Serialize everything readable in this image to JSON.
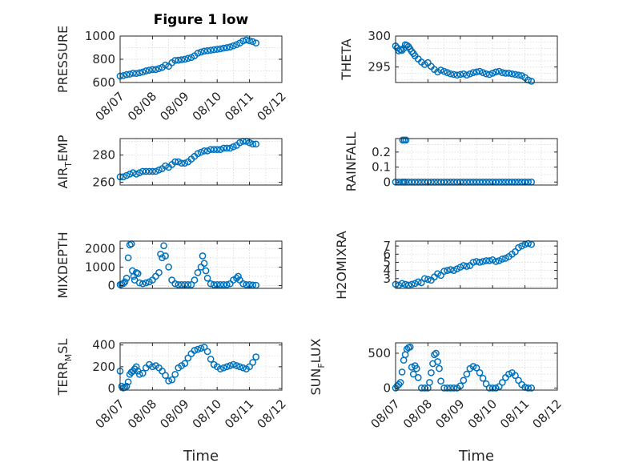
{
  "figure": {
    "title": "Figure 1 low",
    "colors": {
      "marker": "#0072BD",
      "axis": "#262626",
      "grid": "#d9d9d9"
    }
  },
  "chart_data": [
    {
      "type": "scatter",
      "ylabel": "PRESSURE",
      "ylim": [
        600,
        1000
      ],
      "yticks": [
        {
          "v": 600,
          "label": "600"
        },
        {
          "v": 800,
          "label": "800"
        },
        {
          "v": 1000,
          "label": "1000"
        }
      ],
      "ygrid": [
        600,
        700,
        800,
        900,
        1000
      ],
      "xlim": [
        0,
        5
      ],
      "xticks": [
        {
          "v": 0,
          "label": "08/07"
        },
        {
          "v": 1,
          "label": "08/08"
        },
        {
          "v": 2,
          "label": "08/09"
        },
        {
          "v": 3,
          "label": "08/10"
        },
        {
          "v": 4,
          "label": "08/11"
        },
        {
          "v": 5,
          "label": "08/12"
        }
      ],
      "xgrid": [
        0,
        0.5,
        1,
        1.5,
        2,
        2.5,
        3,
        3.5,
        4,
        4.5,
        5
      ],
      "x": [
        0,
        0.1,
        0.2,
        0.3,
        0.4,
        0.5,
        0.6,
        0.7,
        0.8,
        0.9,
        1.0,
        1.1,
        1.2,
        1.3,
        1.4,
        1.5,
        1.6,
        1.7,
        1.8,
        1.9,
        2.0,
        2.1,
        2.2,
        2.3,
        2.4,
        2.5,
        2.6,
        2.7,
        2.8,
        2.9,
        3.0,
        3.1,
        3.2,
        3.3,
        3.4,
        3.5,
        3.6,
        3.7,
        3.8,
        3.9,
        4.0,
        4.1,
        4.2
      ],
      "y": [
        655,
        660,
        668,
        672,
        680,
        678,
        684,
        690,
        700,
        706,
        712,
        712,
        720,
        730,
        750,
        740,
        770,
        790,
        792,
        796,
        800,
        808,
        815,
        830,
        852,
        862,
        870,
        874,
        878,
        882,
        886,
        890,
        896,
        900,
        906,
        916,
        926,
        940,
        958,
        966,
        960,
        952,
        940
      ]
    },
    {
      "type": "scatter",
      "ylabel": "THETA",
      "ylim": [
        292.5,
        300
      ],
      "yticks": [
        {
          "v": 295,
          "label": "295"
        },
        {
          "v": 300,
          "label": "300"
        }
      ],
      "ygrid": [
        293,
        294,
        295,
        296,
        297,
        298,
        299,
        300
      ],
      "xlim": [
        0,
        5
      ],
      "xticks": [
        {
          "v": 0,
          "label": ""
        },
        {
          "v": 1,
          "label": ""
        },
        {
          "v": 2,
          "label": ""
        },
        {
          "v": 3,
          "label": ""
        },
        {
          "v": 4,
          "label": ""
        },
        {
          "v": 5,
          "label": ""
        }
      ],
      "xgrid": [
        0,
        0.5,
        1,
        1.5,
        2,
        2.5,
        3,
        3.5,
        4,
        4.5,
        5
      ],
      "x": [
        0,
        0.05,
        0.1,
        0.15,
        0.2,
        0.25,
        0.3,
        0.35,
        0.4,
        0.45,
        0.5,
        0.55,
        0.6,
        0.7,
        0.8,
        0.9,
        1.0,
        1.1,
        1.2,
        1.3,
        1.4,
        1.5,
        1.6,
        1.7,
        1.8,
        1.9,
        2.0,
        2.1,
        2.2,
        2.3,
        2.4,
        2.5,
        2.6,
        2.7,
        2.8,
        2.9,
        3.0,
        3.1,
        3.2,
        3.3,
        3.4,
        3.5,
        3.6,
        3.7,
        3.8,
        3.9,
        4.0,
        4.1,
        4.2
      ],
      "y": [
        298.4,
        298.1,
        297.6,
        297.8,
        297.7,
        298.0,
        298.6,
        298.5,
        298.3,
        297.9,
        297.5,
        297.2,
        296.8,
        296.3,
        295.8,
        295.4,
        295.7,
        295.1,
        294.6,
        294.2,
        294.5,
        294.3,
        294.1,
        293.9,
        293.8,
        293.7,
        293.8,
        293.9,
        293.7,
        293.9,
        294.1,
        294.2,
        294.3,
        294.1,
        293.9,
        293.8,
        294.0,
        294.2,
        294.3,
        294.1,
        294.0,
        294.0,
        293.9,
        293.8,
        293.7,
        293.6,
        293.3,
        292.9,
        292.7
      ]
    },
    {
      "type": "scatter",
      "ylabel": "AIR_TEMP",
      "ylim": [
        258,
        292
      ],
      "yticks": [
        {
          "v": 260,
          "label": "260"
        },
        {
          "v": 280,
          "label": "280"
        }
      ],
      "ygrid": [
        260,
        270,
        280,
        290
      ],
      "xlim": [
        0,
        5
      ],
      "xticks": [
        {
          "v": 0,
          "label": ""
        },
        {
          "v": 1,
          "label": ""
        },
        {
          "v": 2,
          "label": ""
        },
        {
          "v": 3,
          "label": ""
        },
        {
          "v": 4,
          "label": ""
        },
        {
          "v": 5,
          "label": ""
        }
      ],
      "xgrid": [
        0,
        0.5,
        1,
        1.5,
        2,
        2.5,
        3,
        3.5,
        4,
        4.5,
        5
      ],
      "x": [
        0,
        0.1,
        0.2,
        0.3,
        0.4,
        0.5,
        0.6,
        0.7,
        0.8,
        0.9,
        1.0,
        1.1,
        1.2,
        1.3,
        1.4,
        1.5,
        1.6,
        1.7,
        1.8,
        1.9,
        2.0,
        2.1,
        2.2,
        2.3,
        2.4,
        2.5,
        2.6,
        2.7,
        2.8,
        2.9,
        3.0,
        3.1,
        3.2,
        3.3,
        3.4,
        3.5,
        3.6,
        3.7,
        3.8,
        3.9,
        4.0,
        4.1,
        4.2
      ],
      "y": [
        264,
        264,
        265,
        266,
        267,
        266,
        267,
        268,
        268,
        268,
        268,
        268,
        269,
        270,
        272,
        271,
        273,
        275,
        275,
        274,
        274,
        275,
        277,
        279,
        281,
        282,
        283,
        283,
        284,
        284,
        284,
        284,
        285,
        285,
        285,
        286,
        287,
        289,
        290,
        290,
        289,
        288,
        288
      ]
    },
    {
      "type": "scatter",
      "ylabel": "RAINFALL",
      "ylim": [
        -0.02,
        0.29
      ],
      "yticks": [
        {
          "v": 0,
          "label": "0"
        },
        {
          "v": 0.1,
          "label": "0.1"
        },
        {
          "v": 0.2,
          "label": "0.2"
        }
      ],
      "ygrid": [
        0,
        0.05,
        0.1,
        0.15,
        0.2,
        0.25
      ],
      "xlim": [
        0,
        5
      ],
      "xticks": [
        {
          "v": 0,
          "label": ""
        },
        {
          "v": 1,
          "label": ""
        },
        {
          "v": 2,
          "label": ""
        },
        {
          "v": 3,
          "label": ""
        },
        {
          "v": 4,
          "label": ""
        },
        {
          "v": 5,
          "label": ""
        }
      ],
      "xgrid": [
        0,
        0.5,
        1,
        1.5,
        2,
        2.5,
        3,
        3.5,
        4,
        4.5,
        5
      ],
      "x": [
        0,
        0.1,
        0.2,
        0.25,
        0.3,
        0.4,
        0.5,
        0.6,
        0.7,
        0.8,
        0.9,
        1.0,
        1.1,
        1.2,
        1.3,
        1.4,
        1.5,
        1.6,
        1.7,
        1.8,
        1.9,
        2.0,
        2.1,
        2.2,
        2.3,
        2.4,
        2.5,
        2.6,
        2.7,
        2.8,
        2.9,
        3.0,
        3.1,
        3.2,
        3.3,
        3.4,
        3.5,
        3.6,
        3.7,
        3.8,
        3.9,
        4.0,
        4.1,
        4.2,
        0.22,
        0.27,
        0.32
      ],
      "y": [
        0,
        0,
        0,
        0,
        0,
        0,
        0,
        0,
        0,
        0,
        0,
        0,
        0,
        0,
        0,
        0,
        0,
        0,
        0,
        0,
        0,
        0,
        0,
        0,
        0,
        0,
        0,
        0,
        0,
        0,
        0,
        0,
        0,
        0,
        0,
        0,
        0,
        0,
        0,
        0,
        0,
        0,
        0,
        0,
        0.28,
        0.28,
        0.28
      ]
    },
    {
      "type": "scatter",
      "ylabel": "MIXDEPTH",
      "ylim": [
        -150,
        2400
      ],
      "yticks": [
        {
          "v": 0,
          "label": "0"
        },
        {
          "v": 1000,
          "label": "1000"
        },
        {
          "v": 2000,
          "label": "2000"
        }
      ],
      "ygrid": [
        0,
        500,
        1000,
        1500,
        2000
      ],
      "xlim": [
        0,
        5
      ],
      "xticks": [
        {
          "v": 0,
          "label": ""
        },
        {
          "v": 1,
          "label": ""
        },
        {
          "v": 2,
          "label": ""
        },
        {
          "v": 3,
          "label": ""
        },
        {
          "v": 4,
          "label": ""
        },
        {
          "v": 5,
          "label": ""
        }
      ],
      "xgrid": [
        0,
        0.5,
        1,
        1.5,
        2,
        2.5,
        3,
        3.5,
        4,
        4.5,
        5
      ],
      "x": [
        0,
        0.05,
        0.1,
        0.15,
        0.2,
        0.25,
        0.3,
        0.35,
        0.38,
        0.42,
        0.45,
        0.5,
        0.55,
        0.6,
        0.7,
        0.8,
        0.9,
        1.0,
        1.1,
        1.2,
        1.25,
        1.3,
        1.35,
        1.4,
        1.5,
        1.6,
        1.7,
        1.8,
        1.9,
        2.0,
        2.1,
        2.2,
        2.3,
        2.4,
        2.5,
        2.55,
        2.6,
        2.65,
        2.7,
        2.8,
        2.9,
        3.0,
        3.1,
        3.2,
        3.3,
        3.4,
        3.5,
        3.6,
        3.65,
        3.7,
        3.8,
        3.9,
        4.0,
        4.1,
        4.2
      ],
      "y": [
        50,
        80,
        120,
        200,
        400,
        1500,
        2200,
        2250,
        800,
        500,
        300,
        700,
        650,
        150,
        100,
        150,
        200,
        300,
        500,
        700,
        1700,
        1500,
        2150,
        1600,
        1000,
        300,
        100,
        50,
        50,
        50,
        50,
        50,
        300,
        700,
        1000,
        1600,
        1200,
        800,
        400,
        100,
        50,
        50,
        50,
        50,
        50,
        100,
        300,
        400,
        500,
        300,
        100,
        50,
        50,
        30,
        20
      ]
    },
    {
      "type": "scatter",
      "ylabel": "H2OMIXRA",
      "ylim": [
        1.8,
        7.6
      ],
      "yticks": [
        {
          "v": 3,
          "label": "3"
        },
        {
          "v": 4,
          "label": "4"
        },
        {
          "v": 5,
          "label": "5"
        },
        {
          "v": 6,
          "label": "6"
        },
        {
          "v": 7,
          "label": "7"
        }
      ],
      "ygrid": [
        2,
        3,
        4,
        5,
        6,
        7
      ],
      "xlim": [
        0,
        5
      ],
      "xticks": [
        {
          "v": 0,
          "label": ""
        },
        {
          "v": 1,
          "label": ""
        },
        {
          "v": 2,
          "label": ""
        },
        {
          "v": 3,
          "label": ""
        },
        {
          "v": 4,
          "label": ""
        },
        {
          "v": 5,
          "label": ""
        }
      ],
      "xgrid": [
        0,
        0.5,
        1,
        1.5,
        2,
        2.5,
        3,
        3.5,
        4,
        4.5,
        5
      ],
      "x": [
        0,
        0.1,
        0.2,
        0.3,
        0.4,
        0.5,
        0.6,
        0.7,
        0.8,
        0.9,
        1.0,
        1.1,
        1.2,
        1.3,
        1.4,
        1.5,
        1.6,
        1.7,
        1.8,
        1.9,
        2.0,
        2.1,
        2.2,
        2.3,
        2.4,
        2.5,
        2.6,
        2.7,
        2.8,
        2.9,
        3.0,
        3.1,
        3.2,
        3.3,
        3.4,
        3.5,
        3.6,
        3.7,
        3.8,
        3.9,
        4.0,
        4.1,
        4.2
      ],
      "y": [
        2.3,
        2.2,
        2.4,
        2.3,
        2.2,
        2.3,
        2.4,
        2.6,
        2.5,
        3.0,
        2.9,
        2.8,
        3.2,
        3.6,
        3.4,
        3.9,
        4.0,
        4.1,
        4.0,
        4.2,
        4.4,
        4.6,
        4.5,
        4.6,
        5.0,
        5.1,
        5.0,
        5.1,
        5.2,
        5.2,
        5.3,
        5.1,
        5.2,
        5.4,
        5.5,
        5.7,
        6.0,
        6.3,
        6.8,
        7.0,
        7.2,
        7.3,
        7.2
      ]
    },
    {
      "type": "scatter",
      "ylabel": "TERR_MSL",
      "ylim": [
        -15,
        420
      ],
      "yticks": [
        {
          "v": 0,
          "label": "0"
        },
        {
          "v": 200,
          "label": "200"
        },
        {
          "v": 400,
          "label": "400"
        }
      ],
      "ygrid": [
        0,
        100,
        200,
        300,
        400
      ],
      "xlim": [
        0,
        5
      ],
      "xticks": [
        {
          "v": 0,
          "label": "08/07"
        },
        {
          "v": 1,
          "label": "08/08"
        },
        {
          "v": 2,
          "label": "08/09"
        },
        {
          "v": 3,
          "label": "08/10"
        },
        {
          "v": 4,
          "label": "08/11"
        },
        {
          "v": 5,
          "label": "08/12"
        }
      ],
      "xgrid": [
        0,
        0.5,
        1,
        1.5,
        2,
        2.5,
        3,
        3.5,
        4,
        4.5,
        5
      ],
      "x": [
        0,
        0.05,
        0.1,
        0.15,
        0.2,
        0.25,
        0.3,
        0.35,
        0.4,
        0.45,
        0.5,
        0.55,
        0.6,
        0.7,
        0.8,
        0.9,
        1.0,
        1.1,
        1.2,
        1.3,
        1.4,
        1.5,
        1.6,
        1.7,
        1.8,
        1.9,
        2.0,
        2.1,
        2.2,
        2.3,
        2.4,
        2.5,
        2.6,
        2.7,
        2.8,
        2.9,
        3.0,
        3.1,
        3.2,
        3.3,
        3.4,
        3.5,
        3.6,
        3.7,
        3.8,
        3.9,
        4.0,
        4.1,
        4.2
      ],
      "y": [
        160,
        20,
        5,
        10,
        20,
        60,
        130,
        150,
        160,
        180,
        200,
        160,
        130,
        140,
        190,
        220,
        200,
        210,
        190,
        160,
        120,
        70,
        80,
        130,
        190,
        210,
        230,
        280,
        320,
        350,
        360,
        370,
        380,
        340,
        270,
        220,
        200,
        180,
        190,
        200,
        210,
        220,
        210,
        200,
        190,
        180,
        200,
        240,
        290
      ]
    },
    {
      "type": "scatter",
      "ylabel": "SUN_FLUX",
      "ylim": [
        -30,
        650
      ],
      "yticks": [
        {
          "v": 0,
          "label": "0"
        },
        {
          "v": 500,
          "label": "500"
        }
      ],
      "ygrid": [
        0,
        100,
        200,
        300,
        400,
        500,
        600
      ],
      "xlim": [
        0,
        5
      ],
      "xticks": [
        {
          "v": 0,
          "label": "08/07"
        },
        {
          "v": 1,
          "label": "08/08"
        },
        {
          "v": 2,
          "label": "08/09"
        },
        {
          "v": 3,
          "label": "08/10"
        },
        {
          "v": 4,
          "label": "08/11"
        },
        {
          "v": 5,
          "label": "08/12"
        }
      ],
      "xgrid": [
        0,
        0.5,
        1,
        1.5,
        2,
        2.5,
        3,
        3.5,
        4,
        4.5,
        5
      ],
      "x": [
        0,
        0.05,
        0.1,
        0.15,
        0.2,
        0.25,
        0.3,
        0.35,
        0.4,
        0.45,
        0.5,
        0.55,
        0.6,
        0.65,
        0.7,
        0.8,
        0.9,
        1.0,
        1.05,
        1.1,
        1.15,
        1.2,
        1.25,
        1.3,
        1.35,
        1.4,
        1.5,
        1.6,
        1.7,
        1.8,
        1.9,
        2.0,
        2.1,
        2.2,
        2.3,
        2.4,
        2.5,
        2.6,
        2.7,
        2.8,
        2.9,
        3.0,
        3.1,
        3.2,
        3.3,
        3.4,
        3.5,
        3.6,
        3.7,
        3.8,
        3.9,
        4.0,
        4.1,
        4.2
      ],
      "y": [
        0,
        30,
        50,
        80,
        230,
        400,
        480,
        560,
        580,
        590,
        300,
        200,
        320,
        280,
        150,
        0,
        0,
        0,
        80,
        220,
        350,
        480,
        500,
        380,
        280,
        100,
        0,
        0,
        0,
        0,
        0,
        30,
        110,
        200,
        280,
        310,
        290,
        220,
        140,
        60,
        0,
        0,
        0,
        20,
        80,
        150,
        200,
        220,
        180,
        110,
        50,
        10,
        0,
        0
      ]
    }
  ],
  "axis_labels": {
    "air_temp": {
      "main": "AIR",
      "sub": "T",
      "rest": "EMP"
    },
    "terr_msl": {
      "main": "TERR",
      "sub": "M",
      "rest": "SL"
    },
    "sun_flux": {
      "main": "SUN",
      "sub": "F",
      "rest": "LUX"
    },
    "time_left": "Time",
    "time_right": "Time"
  }
}
